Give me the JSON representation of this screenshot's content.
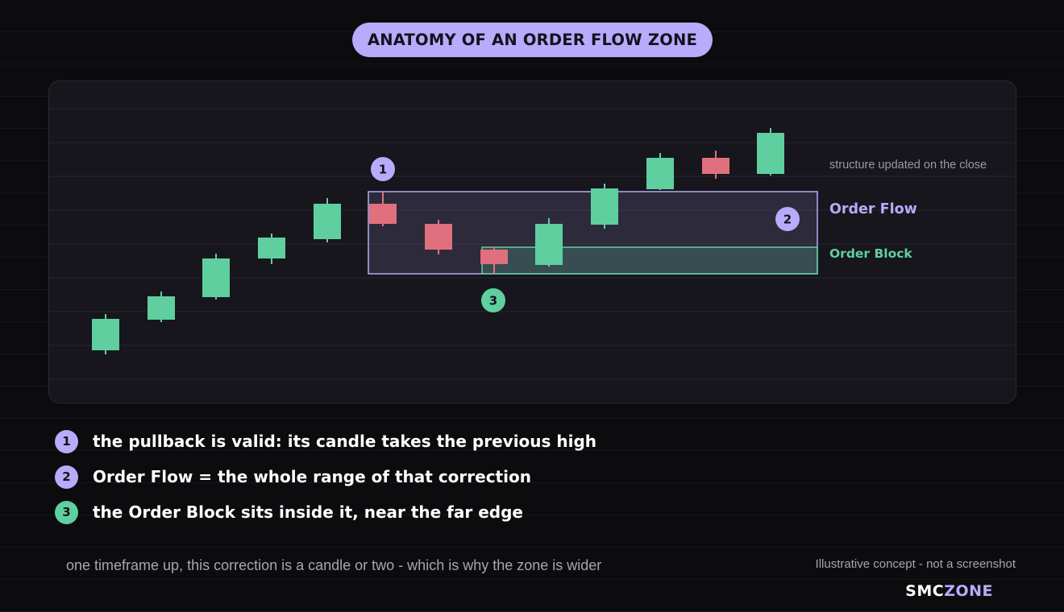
{
  "title": "ANATOMY OF AN ORDER FLOW ZONE",
  "colors": {
    "bull": "#5fcfa0",
    "bear": "#e0707e",
    "order_flow": "#b7abfb",
    "order_block": "#5fcfa0",
    "background": "#0c0c0f",
    "panel": "#17161c"
  },
  "diagram": {
    "note": "structure updated on the close",
    "order_flow_label": "Order Flow",
    "order_block_label": "Order Block",
    "markers": [
      "1",
      "2",
      "3"
    ],
    "candles": [
      {
        "dir": "bull"
      },
      {
        "dir": "bull"
      },
      {
        "dir": "bull"
      },
      {
        "dir": "bull"
      },
      {
        "dir": "bull"
      },
      {
        "dir": "bear"
      },
      {
        "dir": "bear"
      },
      {
        "dir": "bear"
      },
      {
        "dir": "bull"
      },
      {
        "dir": "bull"
      },
      {
        "dir": "bull"
      },
      {
        "dir": "bear"
      },
      {
        "dir": "bull"
      }
    ]
  },
  "legend": [
    {
      "num": "1",
      "text": "the pullback is valid: its candle takes the previous high",
      "color": "#b7abfb"
    },
    {
      "num": "2",
      "text": "Order Flow = the whole range of that correction",
      "color": "#b7abfb"
    },
    {
      "num": "3",
      "text": "the Order Block sits inside it, near the far edge",
      "color": "#5fcfa0"
    }
  ],
  "footnote": "one timeframe up, this correction is a candle or two - which is why the zone is wider",
  "disclaimer": "Illustrative concept - not a screenshot",
  "brand": {
    "part1": "SMC",
    "part2": "ZONE"
  }
}
